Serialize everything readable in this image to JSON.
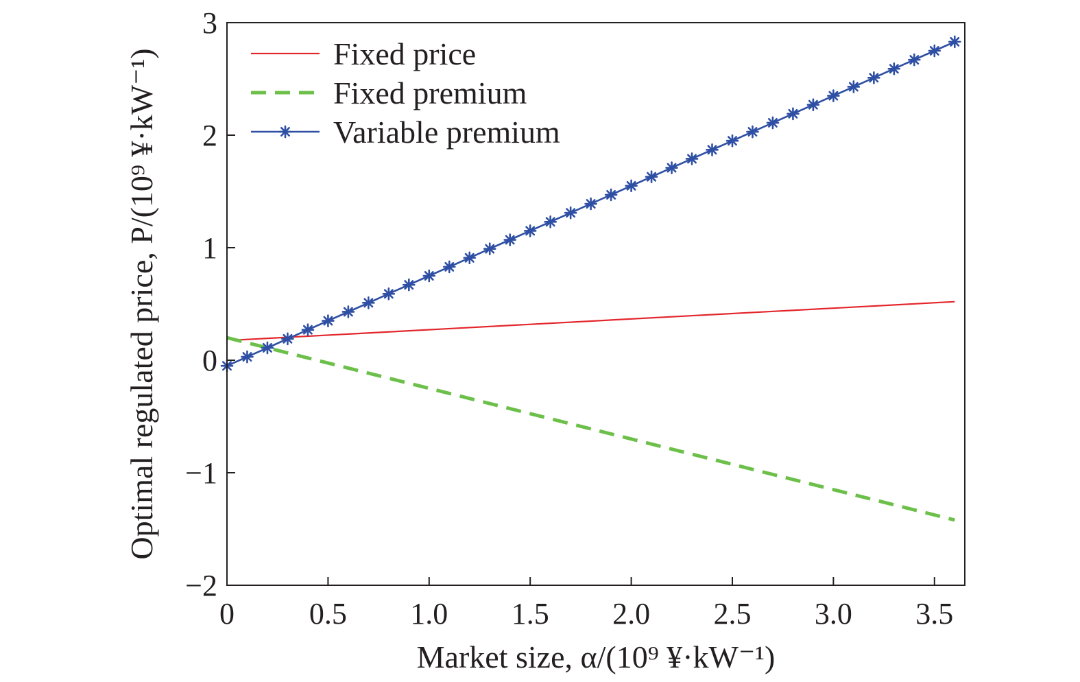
{
  "chart_data": {
    "type": "line",
    "title": "",
    "xlabel": "Market size, α/(10⁹ ¥·kW⁻¹)",
    "ylabel": "Optimal regulated price, P/(10⁹ ¥·kW⁻¹)",
    "xlim": [
      0,
      3.65
    ],
    "ylim": [
      -2,
      3
    ],
    "xticks": [
      0,
      0.5,
      1.0,
      1.5,
      2.0,
      2.5,
      3.0,
      3.5
    ],
    "xtick_labels": [
      "0",
      "0.5",
      "1.0",
      "1.5",
      "2.0",
      "2.5",
      "3.0",
      "3.5"
    ],
    "yticks": [
      -2,
      -1,
      0,
      1,
      2,
      3
    ],
    "ytick_labels": [
      "−2",
      "−1",
      "0",
      "1",
      "2",
      "3"
    ],
    "grid": false,
    "legend_position": "top-left",
    "series": [
      {
        "name": "Fixed price",
        "style": "solid",
        "marker": "none",
        "color": "#e3262b",
        "x": [
          0.05,
          3.6
        ],
        "y": [
          0.18,
          0.52
        ]
      },
      {
        "name": "Fixed premium",
        "style": "dashed",
        "marker": "none",
        "color": "#6cc04a",
        "x": [
          0.0,
          3.6
        ],
        "y": [
          0.2,
          -1.42
        ]
      },
      {
        "name": "Variable premium",
        "style": "solid",
        "marker": "asterisk",
        "color": "#2e4fa3",
        "x": [
          0.0,
          0.1,
          0.2,
          0.3,
          0.4,
          0.5,
          0.6,
          0.7,
          0.8,
          0.9,
          1.0,
          1.1,
          1.2,
          1.3,
          1.4,
          1.5,
          1.6,
          1.7,
          1.8,
          1.9,
          2.0,
          2.1,
          2.2,
          2.3,
          2.4,
          2.5,
          2.6,
          2.7,
          2.8,
          2.9,
          3.0,
          3.1,
          3.2,
          3.3,
          3.4,
          3.5,
          3.6
        ],
        "y": [
          -0.05,
          0.03,
          0.11,
          0.19,
          0.27,
          0.35,
          0.43,
          0.51,
          0.59,
          0.67,
          0.75,
          0.83,
          0.91,
          0.99,
          1.07,
          1.15,
          1.23,
          1.31,
          1.39,
          1.47,
          1.55,
          1.63,
          1.71,
          1.79,
          1.87,
          1.95,
          2.03,
          2.11,
          2.19,
          2.27,
          2.35,
          2.43,
          2.51,
          2.59,
          2.67,
          2.75,
          2.83
        ]
      }
    ]
  }
}
